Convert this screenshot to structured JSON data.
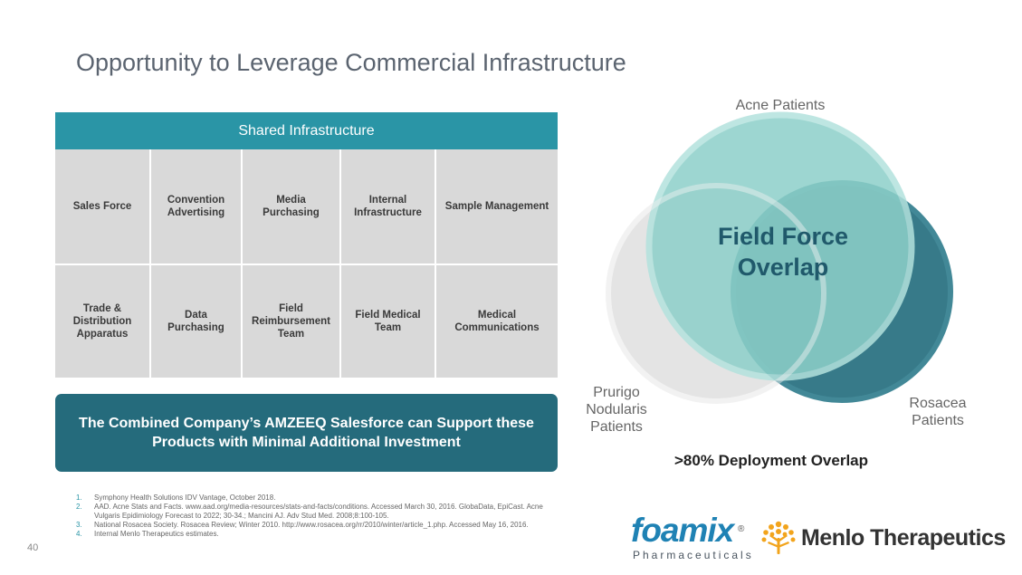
{
  "slide": {
    "title": "Opportunity to Leverage Commercial Infrastructure",
    "page_number": "40"
  },
  "infrastructure": {
    "header": "Shared Infrastructure",
    "row1": [
      "Sales Force",
      "Convention Advertising",
      "Media Purchasing",
      "Internal Infrastructure",
      "Sample Management"
    ],
    "row2": [
      "Trade & Distribution Apparatus",
      "Data Purchasing",
      "Field Reimbursement Team",
      "Field Medical Team",
      "Medical Communications"
    ]
  },
  "callout": {
    "text": "The Combined Company’s AMZEEQ Salesforce can Support these Products with Minimal Additional Investment"
  },
  "venn": {
    "acne_label": "Acne Patients",
    "rosacea_label": "Rosacea Patients",
    "prurigo_label": "Prurigo Nodularis Patients",
    "overlap_label": "Field Force Overlap",
    "deployment_overlap": ">80% Deployment Overlap",
    "colors": {
      "acne": "#8dd0c9",
      "rosacea": "#2f7585",
      "prurigo": "#d9d9d9"
    }
  },
  "footnotes": [
    {
      "num": "1.",
      "text": "Symphony Health Solutions IDV Vantage, October 2018."
    },
    {
      "num": "2.",
      "text": "AAD. Acne Stats and Facts. www.aad.org/media-resources/stats-and-facts/conditions. Accessed March 30, 2016. GlobaData, EpiCast. Acne Vulgaris Epidimiology Forecast to 2022; 30-34.; Mancini AJ. Adv Stud Med. 2008;8:100-105."
    },
    {
      "num": "3.",
      "text": "National Rosacea Society. Rosacea Review; Winter 2010. http://www.rosacea.org/rr/2010/winter/article_1.php. Accessed May 16, 2016."
    },
    {
      "num": "4.",
      "text": "Internal Menlo Therapeutics estimates."
    }
  ],
  "logos": {
    "foamix_name": "foamix",
    "foamix_registered": "®",
    "foamix_sub": "Pharmaceuticals",
    "menlo_name": "Menlo Therapeutics",
    "foamix_color": "#1f82b4",
    "menlo_icon_color": "#f2a41c"
  }
}
